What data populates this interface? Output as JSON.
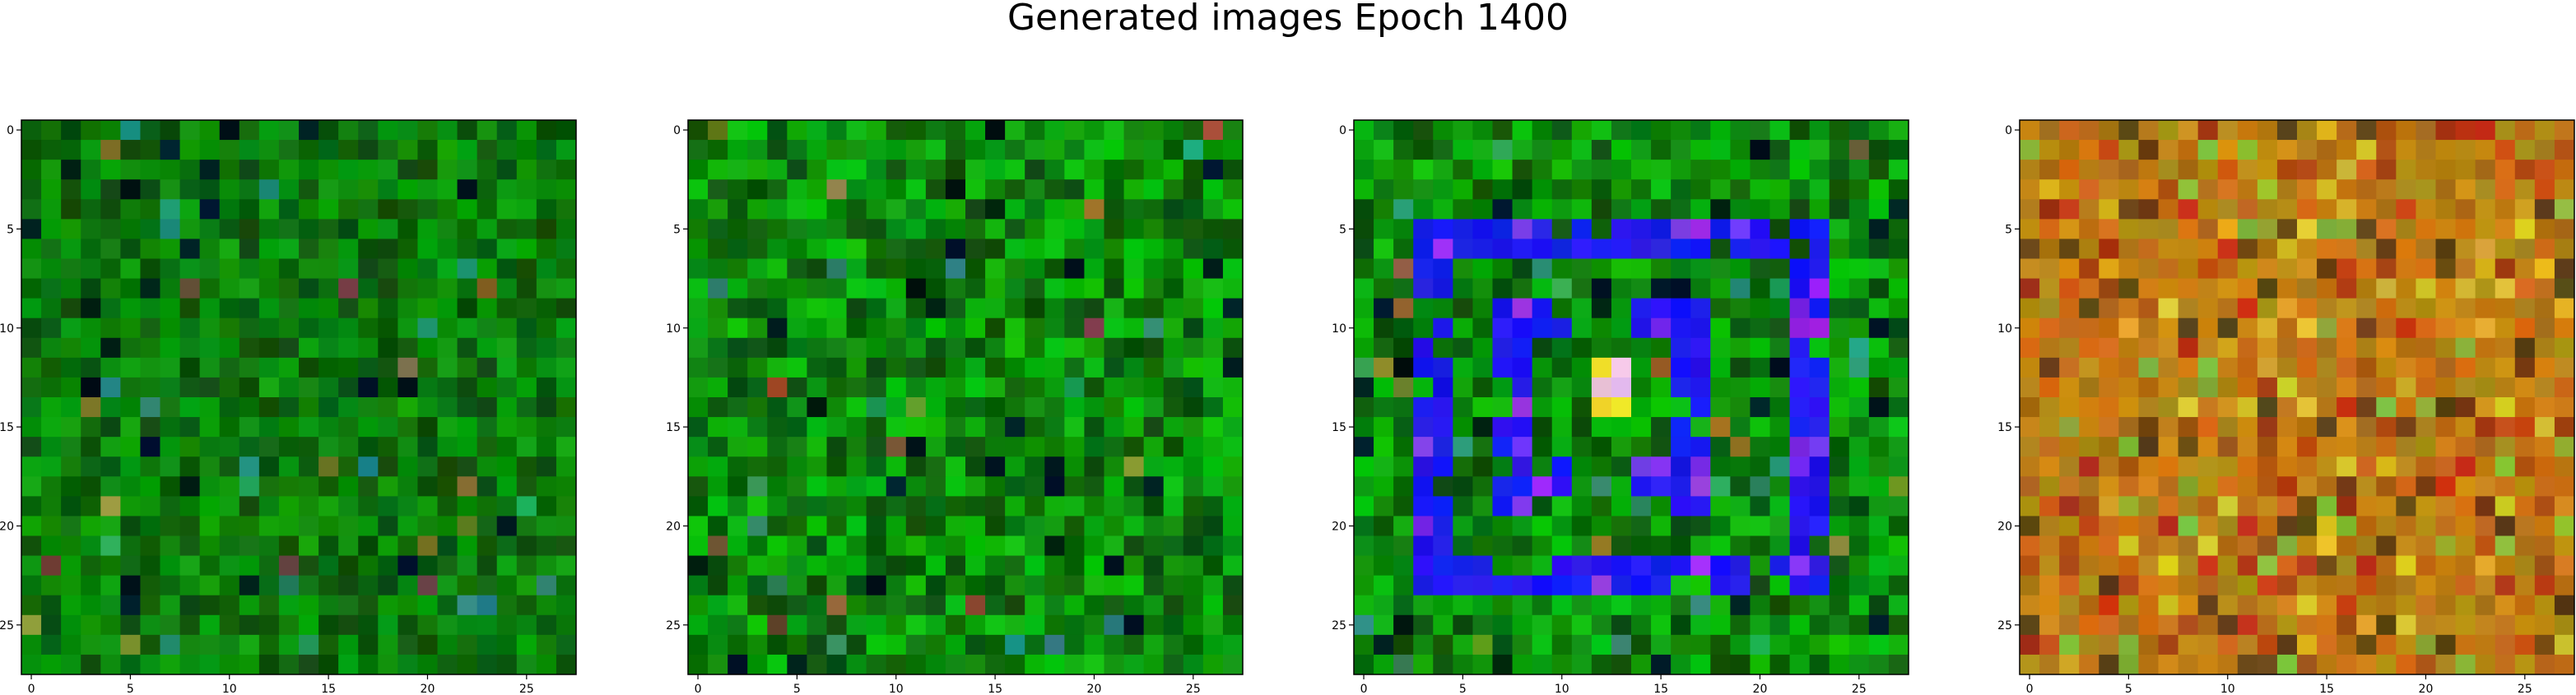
{
  "figure": {
    "title": "Generated images Epoch 1400"
  },
  "panels": [
    {
      "name": "generated-image-1",
      "palette": "green",
      "rows": 28,
      "cols": 28,
      "x_ticks": [
        "0",
        "5",
        "10",
        "15",
        "20",
        "25"
      ],
      "y_ticks": [
        "0",
        "5",
        "10",
        "15",
        "20",
        "25"
      ]
    },
    {
      "name": "generated-image-2",
      "palette": "green-bright",
      "rows": 28,
      "cols": 28,
      "x_ticks": [
        "0",
        "5",
        "10",
        "15",
        "20",
        "25"
      ],
      "y_ticks": [
        "0",
        "5",
        "10",
        "15",
        "20",
        "25"
      ]
    },
    {
      "name": "generated-image-3",
      "palette": "green-blue-frame",
      "rows": 28,
      "cols": 28,
      "x_ticks": [
        "0",
        "5",
        "10",
        "15",
        "20",
        "25"
      ],
      "y_ticks": [
        "0",
        "5",
        "10",
        "15",
        "20",
        "25"
      ]
    },
    {
      "name": "generated-image-4",
      "palette": "orange-brown",
      "rows": 28,
      "cols": 28,
      "x_ticks": [
        "0",
        "5",
        "10",
        "15",
        "20",
        "25"
      ],
      "y_ticks": [
        "0",
        "5",
        "10",
        "15",
        "20",
        "25"
      ]
    }
  ]
}
